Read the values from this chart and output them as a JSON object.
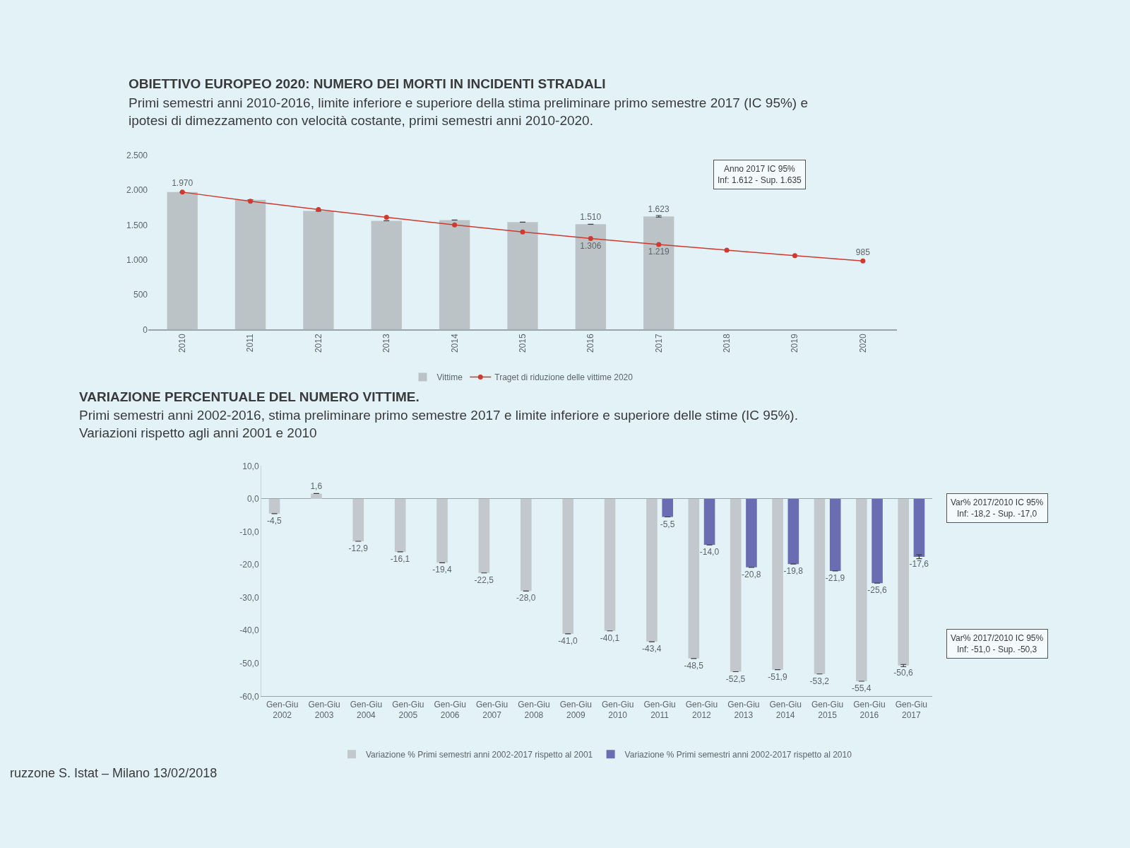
{
  "chart_data": [
    {
      "type": "bar",
      "title": "OBIETTIVO EUROPEO 2020: NUMERO DEI MORTI IN INCIDENTI STRADALI",
      "subtitle": "Primi semestri anni 2010-2016, limite inferiore e superiore della stima preliminare primo semestre 2017 (IC 95%) e ipotesi di dimezzamento con velocità costante, primi semestri anni 2010-2020.",
      "categories": [
        "2010",
        "2011",
        "2012",
        "2013",
        "2014",
        "2015",
        "2016",
        "2017",
        "2018",
        "2019",
        "2020"
      ],
      "series": [
        {
          "name": "Vittime",
          "type": "bar",
          "color": "#bcc3c7",
          "values": [
            1970,
            1860,
            1700,
            1560,
            1570,
            1540,
            1510,
            1623,
            null,
            null,
            null
          ],
          "value_labels": [
            null,
            null,
            null,
            null,
            null,
            null,
            "1.510",
            "1.623",
            null,
            null,
            null
          ],
          "errors": [
            null,
            null,
            null,
            null,
            null,
            null,
            null,
            [
              1612,
              1635
            ],
            null,
            null,
            null
          ]
        },
        {
          "name": "Traget di riduzione delle vittime 2020",
          "type": "line",
          "color": "#d0392e",
          "values": [
            1970,
            1840,
            1720,
            1610,
            1500,
            1400,
            1306,
            1219,
            1140,
            1060,
            985
          ],
          "value_labels": [
            "1.970",
            null,
            null,
            null,
            null,
            null,
            "1.306",
            "1.219",
            null,
            null,
            "985"
          ]
        }
      ],
      "ylim": [
        0,
        2500
      ],
      "yticks": [
        0,
        500,
        {
          "value": 1000,
          "label": "1.000"
        },
        {
          "value": 1500,
          "label": "1.500"
        },
        {
          "value": 2000,
          "label": "2.000"
        },
        {
          "value": 2500,
          "label": "2.500"
        }
      ],
      "marker": "circle",
      "legend": "bottom",
      "annotations": [
        "Anno 2017 IC 95%\nInf: 1.612 - Sup. 1.635"
      ]
    },
    {
      "type": "bar",
      "title": "VARIAZIONE PERCENTUALE DEL NUMERO VITTIME.",
      "subtitle": "Primi semestri anni 2002-2016, stima preliminare primo semestre 2017 e limite inferiore e superiore delle stime (IC 95%). Variazioni rispetto agli anni 2001 e 2010",
      "categories": [
        "Gen-Giu\n2002",
        "Gen-Giu\n2003",
        "Gen-Giu\n2004",
        "Gen-Giu\n2005",
        "Gen-Giu\n2006",
        "Gen-Giu\n2007",
        "Gen-Giu\n2008",
        "Gen-Giu\n2009",
        "Gen-Giu\n2010",
        "Gen-Giu\n2011",
        "Gen-Giu\n2012",
        "Gen-Giu\n2013",
        "Gen-Giu\n2014",
        "Gen-Giu\n2015",
        "Gen-Giu\n2016",
        "Gen-Giu\n2017"
      ],
      "series": [
        {
          "name": "Variazione % Primi semestri anni 2002-2017 rispetto al 2001",
          "color": "#c2c8cc",
          "values": [
            -4.5,
            1.6,
            -12.9,
            -16.1,
            -19.4,
            -22.5,
            -28.0,
            -41.0,
            -40.1,
            -43.4,
            -48.5,
            -52.5,
            -51.9,
            -53.2,
            -55.4,
            -50.6
          ],
          "value_labels": [
            "-4,5",
            "1,6",
            "-12,9",
            "-16,1",
            "-19,4",
            "-22,5",
            "-28,0",
            "-41,0",
            "-40,1",
            "-43,4",
            "-48,5",
            "-52,5",
            "-51,9",
            "-53,2",
            "-55,4",
            "-50,6"
          ],
          "errors": [
            null,
            null,
            null,
            null,
            null,
            null,
            null,
            null,
            null,
            null,
            null,
            null,
            null,
            null,
            null,
            [
              -51.0,
              -50.3
            ]
          ]
        },
        {
          "name": "Variazione % Primi semestri anni 2002-2017 rispetto al 2010",
          "color": "#6b6db3",
          "values": [
            null,
            null,
            null,
            null,
            null,
            null,
            null,
            null,
            null,
            -5.5,
            -14.0,
            -20.8,
            -19.8,
            -21.9,
            -25.6,
            -17.6
          ],
          "value_labels": [
            null,
            null,
            null,
            null,
            null,
            null,
            null,
            null,
            null,
            "-5,5",
            "-14,0",
            "-20,8",
            "-19,8",
            "-21,9",
            "-25,6",
            "-17,6"
          ],
          "errors": [
            null,
            null,
            null,
            null,
            null,
            null,
            null,
            null,
            null,
            null,
            null,
            null,
            null,
            null,
            null,
            [
              -18.2,
              -17.0
            ]
          ]
        }
      ],
      "ylim": [
        -60,
        10
      ],
      "yticks": [
        {
          "value": -60,
          "label": "-60,0"
        },
        {
          "value": -50,
          "label": "-50,0"
        },
        {
          "value": -40,
          "label": "-40,0"
        },
        {
          "value": -30,
          "label": "-30,0"
        },
        {
          "value": -20,
          "label": "-20,0"
        },
        {
          "value": -10,
          "label": "-10,0"
        },
        {
          "value": 0,
          "label": "0,0"
        },
        {
          "value": 10,
          "label": "10,0"
        }
      ],
      "legend": "bottom",
      "annotations": [
        "Var% 2017/2010 IC 95%\nInf: -18,2 - Sup. -17,0",
        "Var% 2017/2010 IC 95%\nInf: -51,0 - Sup. -50,3",
        "ruzzone S. Istat – Milano 13/02/2018"
      ]
    }
  ]
}
